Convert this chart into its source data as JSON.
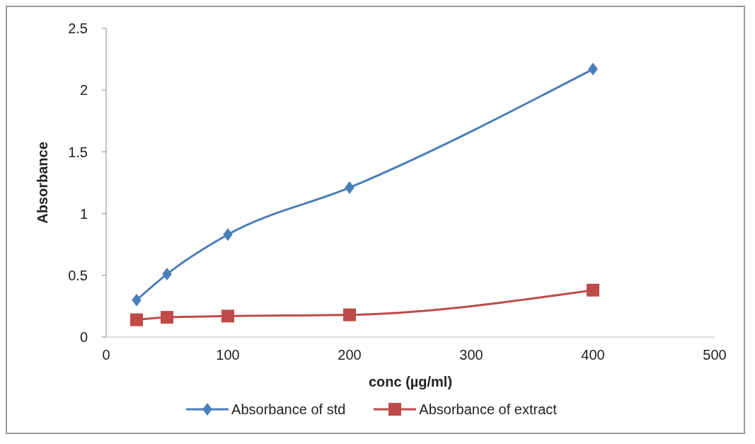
{
  "chart_data": {
    "type": "line",
    "xlabel": "conc (µg/ml)",
    "ylabel": "Absorbance",
    "xlim": [
      0,
      500
    ],
    "xticks": [
      0,
      100,
      200,
      300,
      400,
      500
    ],
    "ylim": [
      0,
      2.5
    ],
    "yticks": [
      0,
      0.5,
      1,
      1.5,
      2,
      2.5
    ],
    "grid": false,
    "legend": "bottom",
    "series": [
      {
        "name": "Absorbance of std",
        "color": "#4a7ebb",
        "marker": "diamond",
        "x": [
          25,
          50,
          100,
          200,
          400
        ],
        "values": [
          0.3,
          0.51,
          0.83,
          1.21,
          2.17
        ]
      },
      {
        "name": "Absorbance of extract",
        "color": "#be4b48",
        "marker": "square",
        "x": [
          25,
          50,
          100,
          200,
          400
        ],
        "values": [
          0.14,
          0.16,
          0.17,
          0.18,
          0.38
        ]
      }
    ]
  }
}
